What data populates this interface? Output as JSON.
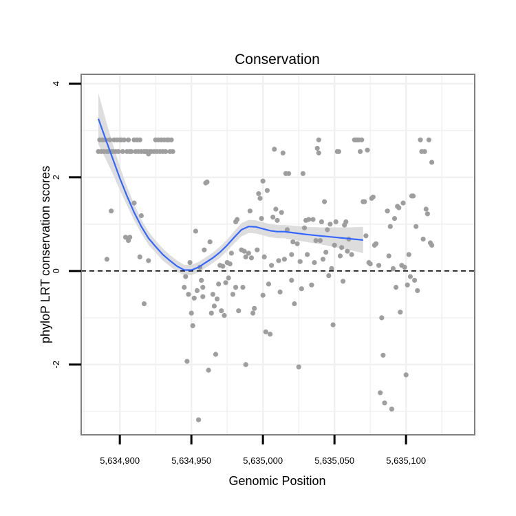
{
  "chart_data": {
    "type": "scatter",
    "title": "Conservation",
    "xlabel": "Genomic Position",
    "ylabel": "phyloP LRT conservation scores",
    "xlim": [
      5634873,
      5635148
    ],
    "ylim": [
      -3.5,
      4.2
    ],
    "xticks": [
      5634900,
      5634950,
      5635000,
      5635050,
      5635100
    ],
    "xtick_labels": [
      "5,634,900",
      "5,634,950",
      "5,635,000",
      "5,635,050",
      "5,635,100"
    ],
    "yticks": [
      -2,
      0,
      2,
      4
    ],
    "ytick_labels": [
      "-2",
      "0",
      "2",
      "4"
    ],
    "reference_line": {
      "y": 0,
      "style": "dashed"
    },
    "colors": {
      "points": "#9e9e9e",
      "smooth": "#3366ff",
      "band": "#d9d9d9",
      "panel_border": "#7f7f7f",
      "grid": "#f0f0f0"
    },
    "points": [
      [
        5634885,
        2.55
      ],
      [
        5634886,
        2.8
      ],
      [
        5634887,
        2.55
      ],
      [
        5634888,
        2.8
      ],
      [
        5634889,
        2.55
      ],
      [
        5634890,
        2.8
      ],
      [
        5634891,
        2.55
      ],
      [
        5634892,
        2.55
      ],
      [
        5634893,
        2.8
      ],
      [
        5634894,
        2.55
      ],
      [
        5634895,
        2.55
      ],
      [
        5634896,
        2.8
      ],
      [
        5634897,
        2.55
      ],
      [
        5634898,
        2.8
      ],
      [
        5634899,
        2.55
      ],
      [
        5634900,
        2.8
      ],
      [
        5634901,
        2.8
      ],
      [
        5634902,
        2.55
      ],
      [
        5634903,
        2.8
      ],
      [
        5634905,
        2.55
      ],
      [
        5634906,
        2.8
      ],
      [
        5634907,
        2.55
      ],
      [
        5634908,
        2.55
      ],
      [
        5634910,
        2.8
      ],
      [
        5634911,
        2.55
      ],
      [
        5634912,
        2.8
      ],
      [
        5634913,
        2.55
      ],
      [
        5634914,
        2.8
      ],
      [
        5634915,
        2.55
      ],
      [
        5634917,
        2.55
      ],
      [
        5634918,
        2.55
      ],
      [
        5634919,
        2.55
      ],
      [
        5634920,
        2.5
      ],
      [
        5634921,
        2.55
      ],
      [
        5634922,
        2.55
      ],
      [
        5634924,
        2.55
      ],
      [
        5634925,
        2.8
      ],
      [
        5634926,
        2.55
      ],
      [
        5634927,
        2.8
      ],
      [
        5634928,
        2.55
      ],
      [
        5634929,
        2.8
      ],
      [
        5634930,
        2.55
      ],
      [
        5634931,
        2.8
      ],
      [
        5634932,
        2.55
      ],
      [
        5634933,
        2.8
      ],
      [
        5634934,
        2.8
      ],
      [
        5634935,
        2.55
      ],
      [
        5634936,
        2.8
      ],
      [
        5634937,
        2.55
      ],
      [
        5634891,
        0.25
      ],
      [
        5634894,
        1.28
      ],
      [
        5634904,
        0.72
      ],
      [
        5634906,
        0.65
      ],
      [
        5634907,
        0.72
      ],
      [
        5634910,
        1.45
      ],
      [
        5634914,
        0.3
      ],
      [
        5634915,
        1.18
      ],
      [
        5634917,
        -0.7
      ],
      [
        5634920,
        0.22
      ],
      [
        5634945,
        -0.35
      ],
      [
        5634946,
        -0.12
      ],
      [
        5634947,
        -1.93
      ],
      [
        5634948,
        -0.5
      ],
      [
        5634949,
        0.18
      ],
      [
        5634950,
        -0.9
      ],
      [
        5634951,
        -1.17
      ],
      [
        5634952,
        -0.58
      ],
      [
        5634953,
        0.85
      ],
      [
        5634954,
        -0.42
      ],
      [
        5634955,
        -3.18
      ],
      [
        5634956,
        0.08
      ],
      [
        5634957,
        -0.2
      ],
      [
        5634958,
        -0.35
      ],
      [
        5634958,
        -0.55
      ],
      [
        5634959,
        0.45
      ],
      [
        5634960,
        1.88
      ],
      [
        5634961,
        1.9
      ],
      [
        5634962,
        -2.12
      ],
      [
        5634963,
        0.62
      ],
      [
        5634964,
        -0.9
      ],
      [
        5634965,
        -0.5
      ],
      [
        5634966,
        -0.75
      ],
      [
        5634967,
        -1.78
      ],
      [
        5634968,
        -0.6
      ],
      [
        5634969,
        -0.28
      ],
      [
        5634970,
        0.12
      ],
      [
        5634971,
        -0.85
      ],
      [
        5634972,
        0.1
      ],
      [
        5634973,
        -0.95
      ],
      [
        5634974,
        -0.25
      ],
      [
        5634975,
        0.18
      ],
      [
        5634976,
        -0.15
      ],
      [
        5634977,
        0.15
      ],
      [
        5634978,
        0.38
      ],
      [
        5634979,
        -0.5
      ],
      [
        5634981,
        -0.35
      ],
      [
        5634981,
        1.05
      ],
      [
        5634982,
        1.1
      ],
      [
        5634983,
        -0.85
      ],
      [
        5634985,
        0.45
      ],
      [
        5634986,
        -0.35
      ],
      [
        5634987,
        0.42
      ],
      [
        5634988,
        -2.0
      ],
      [
        5634988,
        0.3
      ],
      [
        5634990,
        0.38
      ],
      [
        5634991,
        1.28
      ],
      [
        5634992,
        0.28
      ],
      [
        5634993,
        -0.9
      ],
      [
        5634994,
        -0.8
      ],
      [
        5634996,
        0.45
      ],
      [
        5634997,
        1.65
      ],
      [
        5634998,
        1.55
      ],
      [
        5634999,
        1.12
      ],
      [
        5635000,
        1.92
      ],
      [
        5635000,
        -0.52
      ],
      [
        5635001,
        0.3
      ],
      [
        5635002,
        -1.3
      ],
      [
        5635003,
        1.72
      ],
      [
        5635004,
        -0.28
      ],
      [
        5635005,
        -1.35
      ],
      [
        5635006,
        0.12
      ],
      [
        5635007,
        1.15
      ],
      [
        5635008,
        2.6
      ],
      [
        5635009,
        1.32
      ],
      [
        5635010,
        1.08
      ],
      [
        5635011,
        0.22
      ],
      [
        5635012,
        -0.45
      ],
      [
        5635013,
        1.25
      ],
      [
        5635014,
        2.52
      ],
      [
        5635015,
        0.25
      ],
      [
        5635016,
        2.08
      ],
      [
        5635017,
        0.88
      ],
      [
        5635018,
        2.08
      ],
      [
        5635020,
        0.35
      ],
      [
        5635020,
        -0.2
      ],
      [
        5635021,
        0.62
      ],
      [
        5635022,
        -0.7
      ],
      [
        5635024,
        0.58
      ],
      [
        5635025,
        -2.05
      ],
      [
        5635026,
        0.2
      ],
      [
        5635027,
        -0.38
      ],
      [
        5635028,
        2.08
      ],
      [
        5635029,
        0.92
      ],
      [
        5635030,
        1.08
      ],
      [
        5635031,
        0.35
      ],
      [
        5635032,
        1.1
      ],
      [
        5635034,
        -0.3
      ],
      [
        5635035,
        1.1
      ],
      [
        5635036,
        0.18
      ],
      [
        5635037,
        0.65
      ],
      [
        5635038,
        2.62
      ],
      [
        5635039,
        2.8
      ],
      [
        5635039,
        2.52
      ],
      [
        5635040,
        0.65
      ],
      [
        5635041,
        1.05
      ],
      [
        5635042,
        0.25
      ],
      [
        5635043,
        1.48
      ],
      [
        5635044,
        0.4
      ],
      [
        5635045,
        0.88
      ],
      [
        5635046,
        -0.1
      ],
      [
        5635047,
        1.0
      ],
      [
        5635048,
        0.05
      ],
      [
        5635049,
        -1.15
      ],
      [
        5635050,
        0.55
      ],
      [
        5635051,
        1.05
      ],
      [
        5635052,
        2.55
      ],
      [
        5635053,
        2.55
      ],
      [
        5635054,
        0.32
      ],
      [
        5635055,
        0.5
      ],
      [
        5635056,
        -0.22
      ],
      [
        5635057,
        0.98
      ],
      [
        5635058,
        1.05
      ],
      [
        5635059,
        0.42
      ],
      [
        5635060,
        0.68
      ],
      [
        5635062,
        0.35
      ],
      [
        5635064,
        2.8
      ],
      [
        5635065,
        2.8
      ],
      [
        5635066,
        2.8
      ],
      [
        5635067,
        2.8
      ],
      [
        5635068,
        2.55
      ],
      [
        5635069,
        2.8
      ],
      [
        5635070,
        1.48
      ],
      [
        5635071,
        1.48
      ],
      [
        5635072,
        0.75
      ],
      [
        5635073,
        2.58
      ],
      [
        5635074,
        0.18
      ],
      [
        5635075,
        0.15
      ],
      [
        5635076,
        1.55
      ],
      [
        5635077,
        1.58
      ],
      [
        5635078,
        0.55
      ],
      [
        5635079,
        0.58
      ],
      [
        5635081,
        0.12
      ],
      [
        5635082,
        -2.6
      ],
      [
        5635083,
        -1.0
      ],
      [
        5635084,
        -1.8
      ],
      [
        5635085,
        -2.82
      ],
      [
        5635087,
        1.28
      ],
      [
        5635088,
        0.32
      ],
      [
        5635089,
        0.95
      ],
      [
        5635090,
        -2.95
      ],
      [
        5635091,
        0.05
      ],
      [
        5635092,
        1.12
      ],
      [
        5635093,
        -0.35
      ],
      [
        5635094,
        1.38
      ],
      [
        5635095,
        1.35
      ],
      [
        5635096,
        -0.88
      ],
      [
        5635097,
        0.12
      ],
      [
        5635098,
        1.45
      ],
      [
        5635099,
        0.08
      ],
      [
        5635100,
        -2.22
      ],
      [
        5635101,
        -0.3
      ],
      [
        5635102,
        0.35
      ],
      [
        5635103,
        -0.12
      ],
      [
        5635104,
        1.6
      ],
      [
        5635105,
        1.6
      ],
      [
        5635106,
        -0.2
      ],
      [
        5635107,
        0.95
      ],
      [
        5635108,
        -0.42
      ],
      [
        5635110,
        2.8
      ],
      [
        5635111,
        2.55
      ],
      [
        5635112,
        0.68
      ],
      [
        5635113,
        2.55
      ],
      [
        5635114,
        1.32
      ],
      [
        5635115,
        1.22
      ],
      [
        5635116,
        2.8
      ],
      [
        5635117,
        0.6
      ],
      [
        5635118,
        2.32
      ],
      [
        5635118,
        0.55
      ]
    ],
    "smooth_curve": [
      [
        5634885,
        3.25
      ],
      [
        5634890,
        2.82
      ],
      [
        5634895,
        2.4
      ],
      [
        5634900,
        1.98
      ],
      [
        5634905,
        1.6
      ],
      [
        5634910,
        1.25
      ],
      [
        5634915,
        0.95
      ],
      [
        5634920,
        0.7
      ],
      [
        5634925,
        0.52
      ],
      [
        5634930,
        0.35
      ],
      [
        5634935,
        0.22
      ],
      [
        5634940,
        0.1
      ],
      [
        5634945,
        0.02
      ],
      [
        5634950,
        0.02
      ],
      [
        5634955,
        0.08
      ],
      [
        5634960,
        0.18
      ],
      [
        5634965,
        0.28
      ],
      [
        5634970,
        0.4
      ],
      [
        5634975,
        0.55
      ],
      [
        5634980,
        0.72
      ],
      [
        5634985,
        0.88
      ],
      [
        5634990,
        0.95
      ],
      [
        5634995,
        0.94
      ],
      [
        5635000,
        0.9
      ],
      [
        5635005,
        0.86
      ],
      [
        5635010,
        0.84
      ],
      [
        5635015,
        0.84
      ],
      [
        5635020,
        0.82
      ],
      [
        5635030,
        0.78
      ],
      [
        5635040,
        0.75
      ],
      [
        5635050,
        0.72
      ],
      [
        5635060,
        0.69
      ],
      [
        5635070,
        0.66
      ]
    ],
    "confidence_band_halfwidth": [
      0.55,
      0.42,
      0.32,
      0.25,
      0.2,
      0.17,
      0.15,
      0.14,
      0.13,
      0.13,
      0.12,
      0.12,
      0.11,
      0.11,
      0.11,
      0.11,
      0.11,
      0.12,
      0.12,
      0.13,
      0.14,
      0.14,
      0.14,
      0.14,
      0.14,
      0.14,
      0.14,
      0.15,
      0.16,
      0.18,
      0.21,
      0.24,
      0.28
    ]
  }
}
